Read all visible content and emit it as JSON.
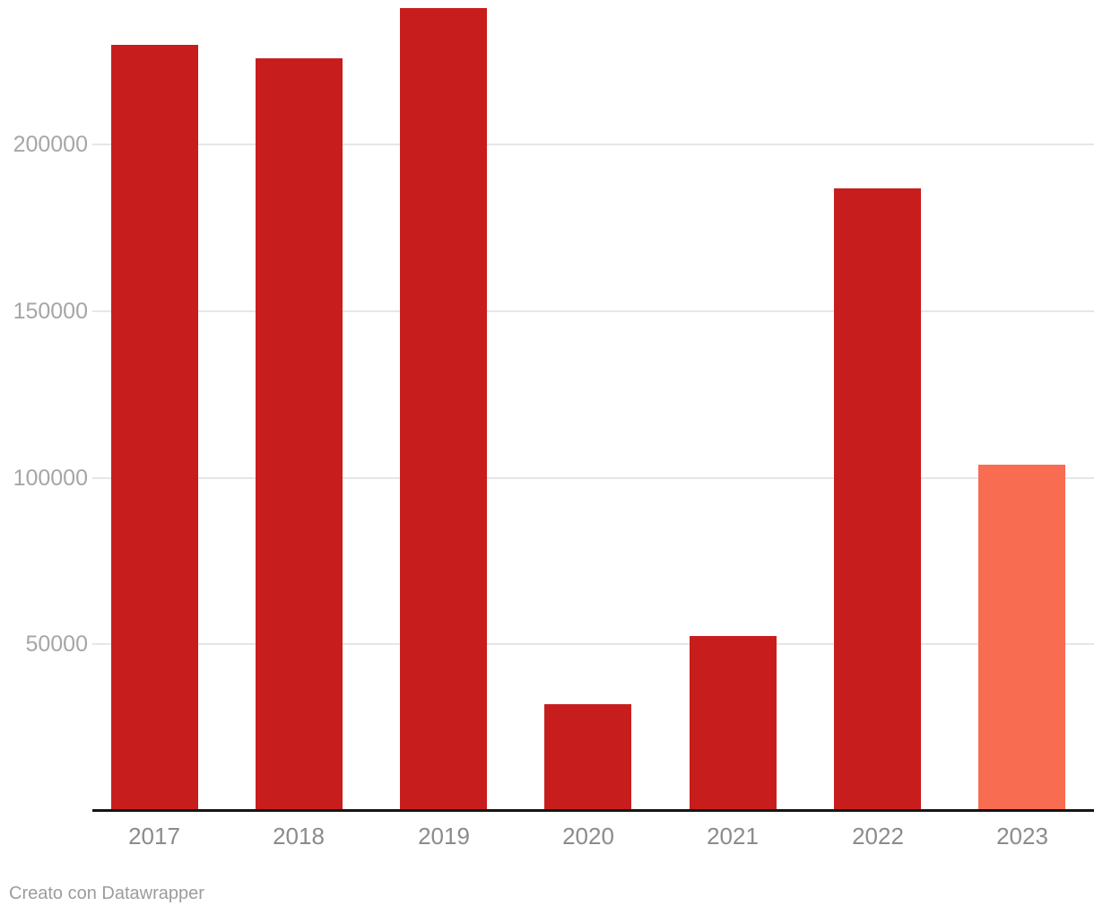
{
  "chart_data": {
    "type": "bar",
    "categories": [
      "2017",
      "2018",
      "2019",
      "2020",
      "2021",
      "2022",
      "2023"
    ],
    "values": [
      230000,
      226000,
      241000,
      32000,
      52500,
      187000,
      104000
    ],
    "bar_colors": [
      "#c71e1d",
      "#c71e1d",
      "#c71e1d",
      "#c71e1d",
      "#c71e1d",
      "#c71e1d",
      "#f86c51"
    ],
    "title": "",
    "xlabel": "",
    "ylabel": "",
    "y_ticks": [
      50000,
      100000,
      150000,
      200000
    ],
    "y_tick_labels": [
      "50000",
      "100000",
      "150000",
      "200000"
    ],
    "ylim": [
      0,
      243500
    ],
    "grid": "horizontal",
    "legend": "none"
  },
  "footer": {
    "credit": "Creato con Datawrapper"
  },
  "colors": {
    "background": "#ffffff",
    "bar_default": "#c71e1d",
    "bar_highlight": "#f86c51",
    "gridline": "#e6e6e6",
    "axis_line": "#151515",
    "y_tick_label": "#a6a6a6",
    "x_label": "#8b8b8b",
    "footer_text": "#9c9c9c"
  }
}
